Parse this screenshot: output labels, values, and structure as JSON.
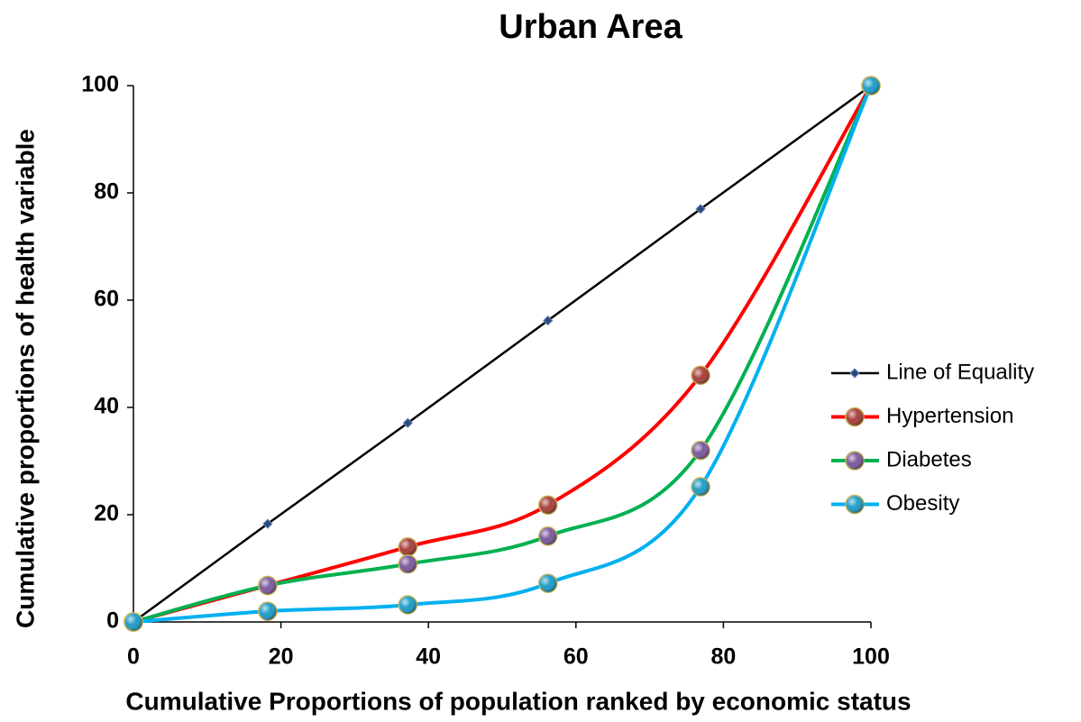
{
  "chart_data": {
    "type": "line",
    "title": "Urban Area",
    "x_label": "Cumulative Proportions of population ranked by economic status",
    "y_label": "Cumulative proportions of health variable",
    "x": [
      0,
      18.2,
      37.2,
      56.2,
      76.9,
      100
    ],
    "series": [
      {
        "name": "Line of Equality",
        "color": "#000000",
        "marker": "diamond",
        "marker_color": "#2a4a7a",
        "smooth": false,
        "values": [
          0,
          18.3,
          37.1,
          56.2,
          77,
          100
        ]
      },
      {
        "name": "Hypertension",
        "color": "#ff0000",
        "marker": "circle",
        "marker_color": "#a8403a",
        "smooth": true,
        "values": [
          0,
          6.8,
          14,
          21.8,
          46,
          100
        ]
      },
      {
        "name": "Diabetes",
        "color": "#00b050",
        "marker": "circle",
        "marker_color": "#7a5a9e",
        "smooth": true,
        "values": [
          0,
          6.8,
          10.8,
          16,
          32,
          100
        ]
      },
      {
        "name": "Obesity",
        "color": "#00b0f0",
        "marker": "circle",
        "marker_color": "#1e9cc8",
        "smooth": true,
        "values": [
          0,
          2,
          3.2,
          7.2,
          25.2,
          100
        ]
      }
    ],
    "xlim": [
      0,
      100
    ],
    "xticks": [
      0,
      20,
      40,
      60,
      80,
      100
    ],
    "ylim": [
      0,
      100
    ],
    "yticks": [
      0,
      20,
      40,
      60,
      80,
      100
    ],
    "grid": false,
    "legend": "right"
  }
}
